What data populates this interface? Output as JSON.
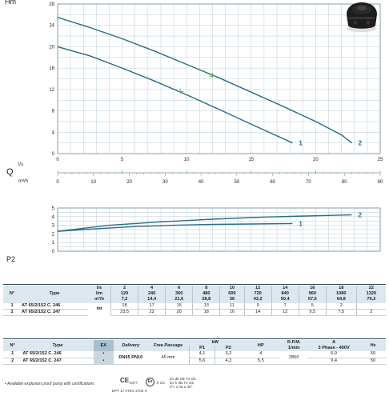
{
  "chart_data": [
    {
      "type": "line",
      "ylabel": "Hm",
      "xlim": [
        0,
        25
      ],
      "ylim": [
        0,
        28
      ],
      "x_ticks": [
        0,
        5,
        10,
        15,
        20,
        25
      ],
      "y_ticks": [
        0,
        4,
        8,
        12,
        16,
        20,
        24,
        28
      ],
      "grid": true,
      "series": [
        {
          "name": "1",
          "x": [
            0,
            2.5,
            5,
            7.5,
            10,
            12.5,
            15,
            17.2,
            18.2
          ],
          "y": [
            20,
            18.3,
            16,
            13.6,
            11,
            8.3,
            5.5,
            3.1,
            2
          ]
        },
        {
          "name": "2",
          "x": [
            0,
            2.5,
            5,
            7.5,
            10,
            12.5,
            15,
            17.5,
            20,
            22,
            22.8
          ],
          "y": [
            25.5,
            23.6,
            21.5,
            19.2,
            16.7,
            14.2,
            11.5,
            8.8,
            6,
            3.5,
            2
          ]
        }
      ],
      "markers": [
        {
          "x": 9.5,
          "y": 11.6
        },
        {
          "x": 12,
          "y": 14.5
        }
      ]
    },
    {
      "type": "axis",
      "labels": [
        "l/s",
        "Q",
        "m³/h"
      ],
      "ls_ticks": [
        0,
        5,
        10,
        15,
        20,
        25
      ],
      "m3h_ticks": [
        0,
        10,
        20,
        30,
        40,
        50,
        60,
        70,
        80,
        90
      ],
      "m3h_range": [
        0,
        90
      ]
    },
    {
      "type": "line",
      "ylabel": "P2",
      "yunit": "kW",
      "ylim": [
        0,
        5
      ],
      "y_ticks": [
        0,
        1,
        2,
        3,
        4,
        5
      ],
      "grid": true,
      "series": [
        {
          "name": "1",
          "x": [
            0,
            3,
            6,
            9,
            12,
            15,
            18.2
          ],
          "y": [
            2.3,
            2.6,
            2.85,
            3.0,
            3.1,
            3.15,
            3.2
          ]
        },
        {
          "name": "2",
          "x": [
            0,
            4,
            8,
            12,
            16,
            20,
            22.8
          ],
          "y": [
            2.3,
            3.0,
            3.4,
            3.7,
            3.95,
            4.1,
            4.2
          ]
        }
      ]
    }
  ],
  "photo": {
    "icon": "pump-photo-icon"
  },
  "table1": {
    "h_no": "N°",
    "h_type": "Type",
    "units": [
      "l/s",
      "l/m",
      "m³/h"
    ],
    "ls": [
      "2",
      "4",
      "6",
      "8",
      "10",
      "12",
      "14",
      "16",
      "18",
      "22"
    ],
    "lm": [
      "120",
      "240",
      "360",
      "480",
      "600",
      "720",
      "840",
      "960",
      "1080",
      "1320"
    ],
    "m3h": [
      "7,2",
      "14,4",
      "21,6",
      "28,8",
      "36",
      "43,2",
      "50,4",
      "57,6",
      "64,8",
      "79,2"
    ],
    "unit_mt": "mt",
    "rows": [
      {
        "no": "1",
        "type": "AT 65/2/152 C. 246",
        "values": [
          "18",
          "17",
          "15",
          "13",
          "11",
          "9",
          "7",
          "5",
          "2",
          ""
        ]
      },
      {
        "no": "2",
        "type": "AT 65/2/152 C. 247",
        "values": [
          "23,5",
          "22",
          "20",
          "18",
          "16",
          "14",
          "12",
          "9,5",
          "7,5",
          "2"
        ]
      }
    ]
  },
  "table2": {
    "h_no": "N°",
    "h_type": "Type",
    "h_ex": "EX",
    "h_delivery": "Delivery",
    "h_free": "Free Passage",
    "h_kw": "kW",
    "h_p1": "P1",
    "h_p2": "P2",
    "h_hp": "HP",
    "h_rpm": "R.P.M.",
    "h_rpm_unit": "1/min",
    "h_a": "A",
    "h_a_sub": "3 Phase - 400V",
    "h_hz": "Hz",
    "delivery": "DN65 PN10",
    "free_passage": "45 mm",
    "rpm": "2850",
    "rows": [
      {
        "no": "1",
        "type": "AT 65/2/152 C. 246",
        "ex": "•",
        "p1": "4,1",
        "p2": "3,2",
        "hp": "4",
        "a": "6,9",
        "hz": "50"
      },
      {
        "no": "2",
        "type": "AT 65/2/152 C. 247",
        "ex": "•",
        "p1": "5,6",
        "p2": "4,2",
        "hp": "5,5",
        "a": "9,4",
        "hz": "50"
      }
    ]
  },
  "footnote": "• Available explosion proof pump with certifications",
  "certs": {
    "ce_code": "0477",
    "atex": "EPT 17 ATEX 2702 X",
    "ex_mark": "Ex",
    "group": "II 2G",
    "line1": "Ex db IIB T4 Gb",
    "line2": "Ex h IIB T4 Gb",
    "line3": "0°c ≤ Ta ≤ 40°"
  }
}
